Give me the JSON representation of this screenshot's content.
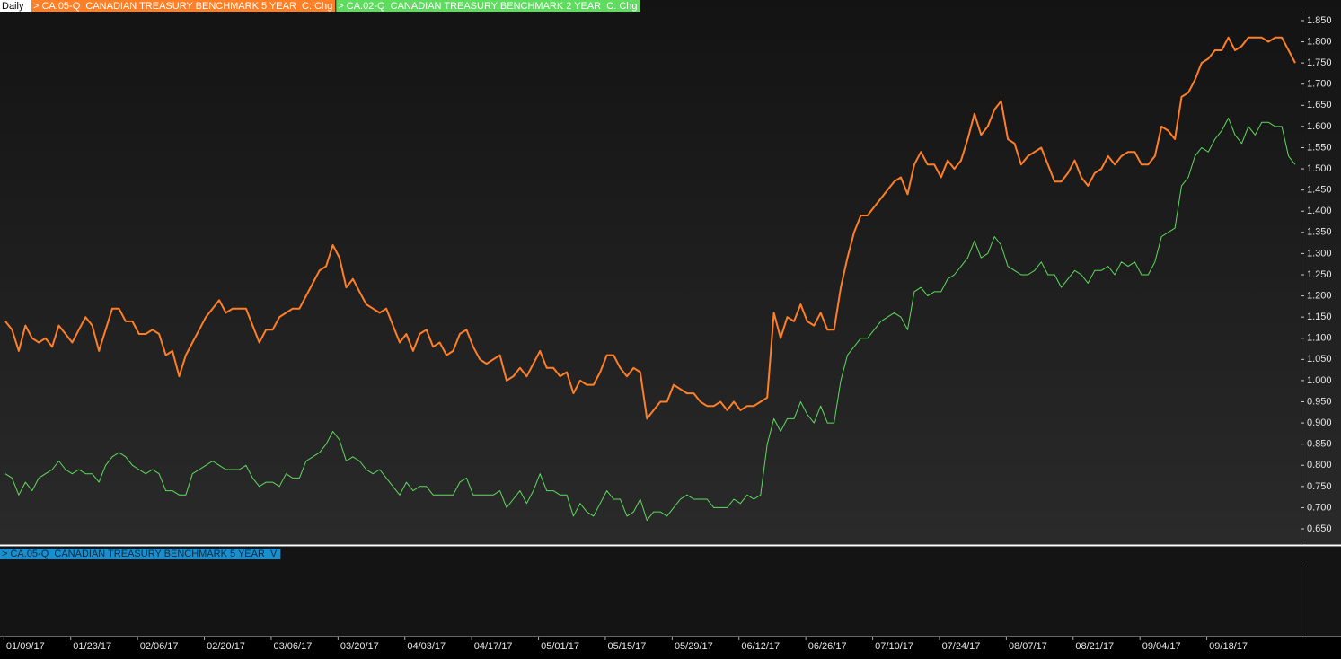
{
  "chart_data": {
    "type": "line",
    "period": "Daily",
    "lower_panel_label": "> CA.05-Q  CANADIAN TREASURY BENCHMARK 5 YEAR  V",
    "lower_panel_color": "#1a8fd0",
    "categories": [
      null,
      null,
      null,
      "01/09/17",
      null,
      null,
      null,
      null,
      null,
      null,
      null,
      null,
      null,
      "01/23/17",
      null,
      null,
      null,
      null,
      null,
      null,
      null,
      null,
      null,
      "02/06/17",
      null,
      null,
      null,
      null,
      null,
      null,
      null,
      null,
      null,
      "02/20/17",
      null,
      null,
      null,
      null,
      null,
      null,
      null,
      null,
      null,
      "03/06/17",
      null,
      null,
      null,
      null,
      null,
      null,
      null,
      null,
      null,
      "03/20/17",
      null,
      null,
      null,
      null,
      null,
      null,
      null,
      null,
      null,
      "04/03/17",
      null,
      null,
      null,
      null,
      null,
      null,
      null,
      null,
      null,
      "04/17/17",
      null,
      null,
      null,
      null,
      null,
      null,
      null,
      null,
      null,
      "05/01/17",
      null,
      null,
      null,
      null,
      null,
      null,
      null,
      null,
      null,
      "05/15/17",
      null,
      null,
      null,
      null,
      null,
      null,
      null,
      null,
      null,
      "05/29/17",
      null,
      null,
      null,
      null,
      null,
      null,
      null,
      null,
      null,
      "06/12/17",
      null,
      null,
      null,
      null,
      null,
      null,
      null,
      null,
      null,
      "06/26/17",
      null,
      null,
      null,
      null,
      null,
      null,
      null,
      null,
      null,
      "07/10/17",
      null,
      null,
      null,
      null,
      null,
      null,
      null,
      null,
      null,
      "07/24/17",
      null,
      null,
      null,
      null,
      null,
      null,
      null,
      null,
      null,
      "08/07/17",
      null,
      null,
      null,
      null,
      null,
      null,
      null,
      null,
      null,
      "08/21/17",
      null,
      null,
      null,
      null,
      null,
      null,
      null,
      null,
      null,
      "09/04/17",
      null,
      null,
      null,
      null,
      null,
      null,
      null,
      null,
      null,
      "09/18/17",
      null,
      null,
      null,
      null,
      null,
      null,
      null,
      null,
      null,
      null
    ],
    "series": [
      {
        "name": "> CA.05-Q  CANADIAN TREASURY BENCHMARK 5 YEAR  C: Chg",
        "color": "#ff7f27",
        "width": 2,
        "values": [
          1.14,
          1.12,
          1.07,
          1.13,
          1.1,
          1.09,
          1.1,
          1.08,
          1.13,
          1.11,
          1.09,
          1.12,
          1.15,
          1.13,
          1.07,
          1.12,
          1.17,
          1.17,
          1.14,
          1.14,
          1.11,
          1.11,
          1.12,
          1.11,
          1.06,
          1.07,
          1.01,
          1.06,
          1.09,
          1.12,
          1.15,
          1.17,
          1.19,
          1.16,
          1.17,
          1.17,
          1.17,
          1.13,
          1.09,
          1.12,
          1.12,
          1.15,
          1.16,
          1.17,
          1.17,
          1.2,
          1.23,
          1.26,
          1.27,
          1.32,
          1.29,
          1.22,
          1.24,
          1.21,
          1.18,
          1.17,
          1.16,
          1.17,
          1.13,
          1.09,
          1.11,
          1.07,
          1.11,
          1.12,
          1.08,
          1.09,
          1.06,
          1.07,
          1.11,
          1.12,
          1.08,
          1.05,
          1.04,
          1.05,
          1.06,
          1.0,
          1.01,
          1.03,
          1.01,
          1.04,
          1.07,
          1.03,
          1.03,
          1.01,
          1.02,
          0.97,
          1.0,
          0.99,
          0.99,
          1.02,
          1.06,
          1.06,
          1.03,
          1.01,
          1.03,
          1.02,
          0.91,
          0.93,
          0.95,
          0.95,
          0.99,
          0.98,
          0.97,
          0.97,
          0.95,
          0.94,
          0.94,
          0.95,
          0.93,
          0.95,
          0.93,
          0.94,
          0.94,
          0.95,
          0.96,
          1.16,
          1.1,
          1.15,
          1.14,
          1.18,
          1.14,
          1.13,
          1.16,
          1.12,
          1.12,
          1.22,
          1.29,
          1.35,
          1.39,
          1.39,
          1.41,
          1.43,
          1.45,
          1.47,
          1.48,
          1.44,
          1.51,
          1.54,
          1.51,
          1.51,
          1.48,
          1.52,
          1.5,
          1.52,
          1.57,
          1.63,
          1.58,
          1.6,
          1.64,
          1.66,
          1.57,
          1.56,
          1.51,
          1.53,
          1.54,
          1.55,
          1.51,
          1.47,
          1.47,
          1.49,
          1.52,
          1.48,
          1.46,
          1.49,
          1.5,
          1.53,
          1.51,
          1.53,
          1.54,
          1.54,
          1.51,
          1.51,
          1.53,
          1.6,
          1.59,
          1.57,
          1.67,
          1.68,
          1.71,
          1.75,
          1.76,
          1.78,
          1.78,
          1.81,
          1.78,
          1.79,
          1.81,
          1.81,
          1.81,
          1.8,
          1.81,
          1.81,
          1.78,
          1.75
        ]
      },
      {
        "name": "> CA.02-Q  CANADIAN TREASURY BENCHMARK 2 YEAR  C: Chg",
        "color": "#5ddc5d",
        "width": 1,
        "values": [
          0.78,
          0.77,
          0.73,
          0.76,
          0.74,
          0.77,
          0.78,
          0.79,
          0.81,
          0.79,
          0.78,
          0.79,
          0.78,
          0.78,
          0.76,
          0.8,
          0.82,
          0.83,
          0.82,
          0.8,
          0.79,
          0.78,
          0.79,
          0.78,
          0.74,
          0.74,
          0.73,
          0.73,
          0.78,
          0.79,
          0.8,
          0.81,
          0.8,
          0.79,
          0.79,
          0.79,
          0.8,
          0.77,
          0.75,
          0.76,
          0.76,
          0.75,
          0.78,
          0.77,
          0.77,
          0.81,
          0.82,
          0.83,
          0.85,
          0.88,
          0.86,
          0.81,
          0.82,
          0.81,
          0.79,
          0.78,
          0.79,
          0.77,
          0.75,
          0.73,
          0.76,
          0.74,
          0.75,
          0.75,
          0.73,
          0.73,
          0.73,
          0.73,
          0.76,
          0.77,
          0.73,
          0.73,
          0.73,
          0.73,
          0.74,
          0.7,
          0.72,
          0.74,
          0.71,
          0.74,
          0.78,
          0.74,
          0.74,
          0.73,
          0.73,
          0.68,
          0.71,
          0.69,
          0.68,
          0.71,
          0.74,
          0.72,
          0.72,
          0.68,
          0.69,
          0.72,
          0.67,
          0.69,
          0.69,
          0.68,
          0.7,
          0.72,
          0.73,
          0.72,
          0.72,
          0.72,
          0.7,
          0.7,
          0.7,
          0.72,
          0.71,
          0.73,
          0.72,
          0.73,
          0.85,
          0.91,
          0.88,
          0.91,
          0.91,
          0.95,
          0.92,
          0.9,
          0.94,
          0.9,
          0.9,
          1.0,
          1.06,
          1.08,
          1.1,
          1.1,
          1.12,
          1.14,
          1.15,
          1.16,
          1.15,
          1.12,
          1.21,
          1.22,
          1.2,
          1.21,
          1.21,
          1.24,
          1.25,
          1.27,
          1.29,
          1.33,
          1.29,
          1.3,
          1.34,
          1.32,
          1.27,
          1.26,
          1.25,
          1.25,
          1.26,
          1.28,
          1.25,
          1.25,
          1.22,
          1.24,
          1.26,
          1.25,
          1.23,
          1.26,
          1.26,
          1.27,
          1.25,
          1.28,
          1.27,
          1.28,
          1.25,
          1.25,
          1.28,
          1.34,
          1.35,
          1.36,
          1.46,
          1.48,
          1.53,
          1.55,
          1.54,
          1.57,
          1.59,
          1.62,
          1.58,
          1.56,
          1.6,
          1.58,
          1.61,
          1.61,
          1.6,
          1.6,
          1.53,
          1.51
        ]
      }
    ],
    "ylim": [
      0.614,
      1.869
    ],
    "yticks": [
      {
        "value": 0.65,
        "label": "0.650"
      },
      {
        "value": 0.7,
        "label": "0.700"
      },
      {
        "value": 0.75,
        "label": "0.750"
      },
      {
        "value": 0.8,
        "label": "0.800"
      },
      {
        "value": 0.85,
        "label": "0.850"
      },
      {
        "value": 0.9,
        "label": "0.900"
      },
      {
        "value": 0.95,
        "label": "0.950"
      },
      {
        "value": 1.0,
        "label": "1.000"
      },
      {
        "value": 1.05,
        "label": "1.050"
      },
      {
        "value": 1.1,
        "label": "1.100"
      },
      {
        "value": 1.15,
        "label": "1.150"
      },
      {
        "value": 1.2,
        "label": "1.200"
      },
      {
        "value": 1.25,
        "label": "1.250"
      },
      {
        "value": 1.3,
        "label": "1.300"
      },
      {
        "value": 1.35,
        "label": "1.350"
      },
      {
        "value": 1.4,
        "label": "1.400"
      },
      {
        "value": 1.45,
        "label": "1.450"
      },
      {
        "value": 1.5,
        "label": "1.500"
      },
      {
        "value": 1.55,
        "label": "1.550"
      },
      {
        "value": 1.6,
        "label": "1.600"
      },
      {
        "value": 1.65,
        "label": "1.650"
      },
      {
        "value": 1.7,
        "label": "1.700"
      },
      {
        "value": 1.75,
        "label": "1.750"
      },
      {
        "value": 1.8,
        "label": "1.800"
      },
      {
        "value": 1.85,
        "label": "1.850"
      }
    ],
    "grid": false
  }
}
